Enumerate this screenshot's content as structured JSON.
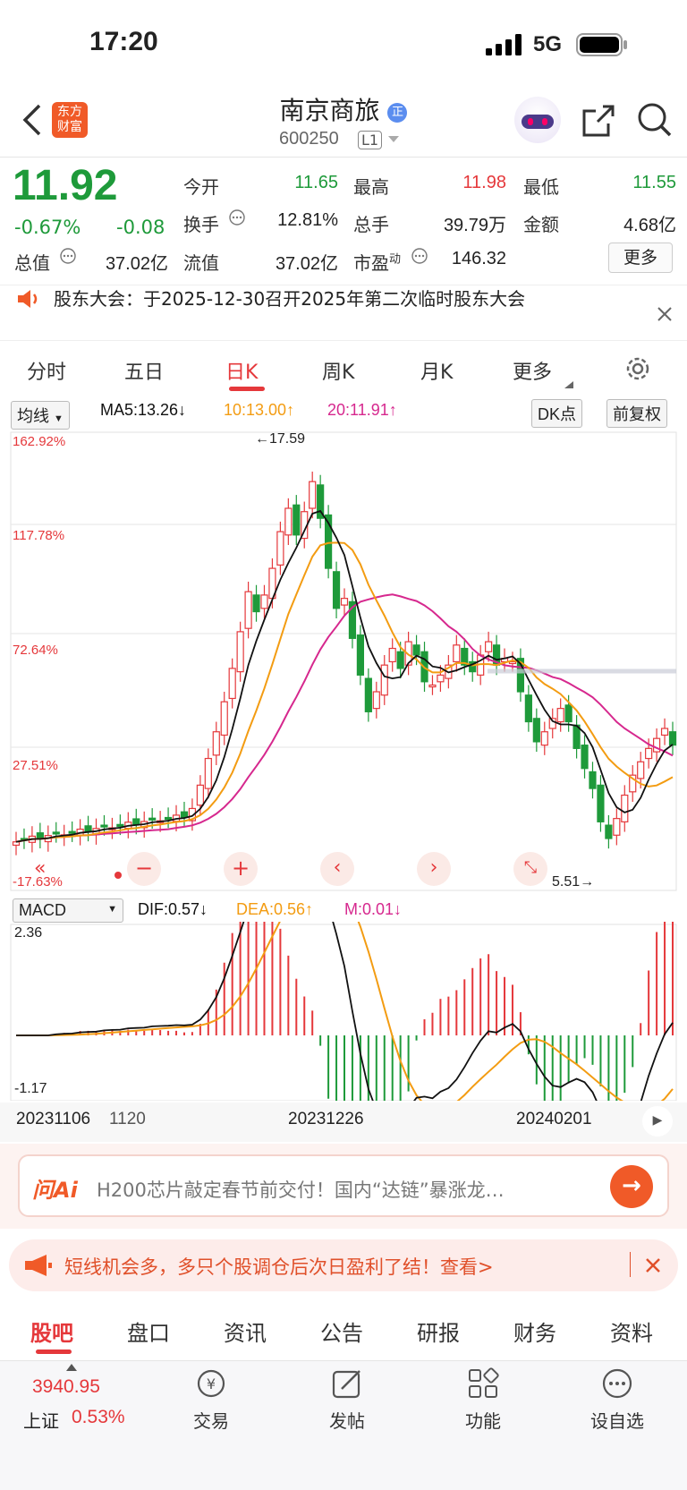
{
  "status_bar": {
    "time": "17:20",
    "network": "5G"
  },
  "header": {
    "back_icon": "chevron-left-icon",
    "logo_text": "东方\n财富",
    "title": "南京商旅",
    "badge": "正",
    "code": "600250",
    "level": "L1",
    "share_icon": "share-icon",
    "search_icon": "search-icon"
  },
  "quote": {
    "price": "11.92",
    "change_pct": "-0.67%",
    "change": "-0.08",
    "items": [
      {
        "label": "今开",
        "value": "11.65"
      },
      {
        "label": "最高",
        "value": "11.98"
      },
      {
        "label": "最低",
        "value": "11.55"
      },
      {
        "label": "换手",
        "value": "12.81%"
      },
      {
        "label": "总手",
        "value": "39.79万"
      },
      {
        "label": "金额",
        "value": "4.68亿"
      },
      {
        "label": "总值",
        "value": "37.02亿"
      },
      {
        "label": "流值",
        "value": "37.02亿"
      },
      {
        "label": "市盈",
        "value": "146.32"
      }
    ],
    "pe_sup": "动",
    "more": "更多"
  },
  "notice": {
    "text": "股东大会：于2025-12-30召开2025年第二次临时股东大会"
  },
  "tabs": [
    "分时",
    "五日",
    "日K",
    "周K",
    "月K",
    "更多"
  ],
  "active_tab": "日K",
  "ma": {
    "selector": "均线",
    "ma5": "MA5:13.26↓",
    "ma10": "10:13.00↑",
    "ma20": "20:11.91↑",
    "dk": "DK点",
    "adjust": "前复权"
  },
  "kline": {
    "y_labels": [
      "162.92%",
      "117.78%",
      "72.64%",
      "27.51%",
      "-17.63%"
    ],
    "high_label": "←17.59",
    "low_label": "5.51→",
    "colors": {
      "up": "#e5383b",
      "down": "#1e9a3a",
      "ma5": "#111111",
      "ma10": "#f39c12",
      "ma20": "#d6288e"
    }
  },
  "macd": {
    "selector": "MACD",
    "dif": "DIF:0.57↓",
    "dea": "DEA:0.56↑",
    "m": "M:0.01↓",
    "y_top": "2.36",
    "y_bottom": "-1.17"
  },
  "dates": [
    "20231106",
    "1120",
    "20231226",
    "20240201"
  ],
  "ai": {
    "logo": "问Ai",
    "text": "H200芯片敲定春节前交付！国内“达链”暴涨龙…"
  },
  "promo": {
    "text": "短线机会多，多只个股调仓后次日盈利了结！查看>"
  },
  "bottom_tabs": [
    "股吧",
    "盘口",
    "资讯",
    "公告",
    "研报",
    "财务",
    "资料"
  ],
  "bottom_nav": {
    "index_value": "3940.95",
    "index_name": "上证",
    "index_pct": "0.53%",
    "items": [
      "交易",
      "发帖",
      "功能",
      "设自选"
    ]
  }
}
